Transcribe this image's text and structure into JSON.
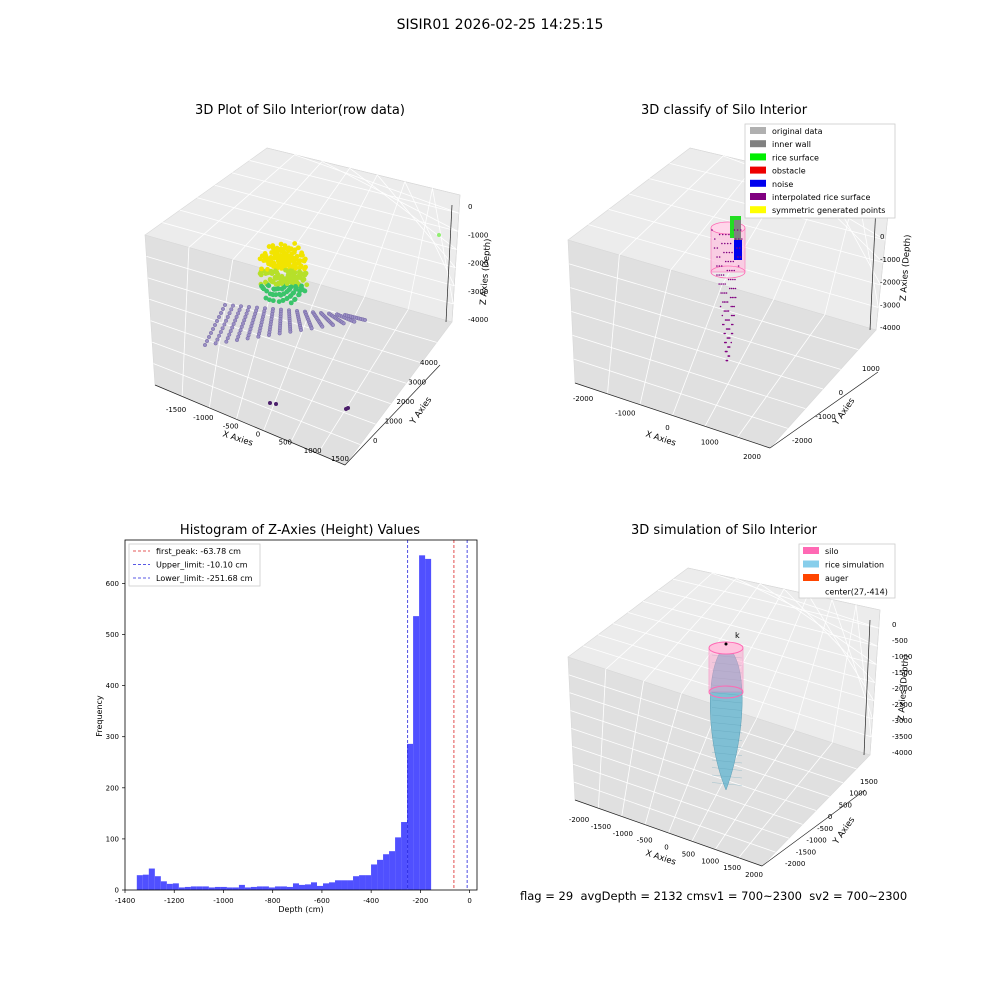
{
  "suptitle": "SISIR01 2026-02-25 14:25:15",
  "panels": {
    "raw": {
      "title": "3D Plot of Silo Interior(row data)",
      "xlabel": "X Axies",
      "ylabel": "Y Axies",
      "zlabel": "Z Axies (Depth)",
      "xticks": [
        "-1500",
        "-1000",
        "-500",
        "0",
        "500",
        "1000",
        "1500"
      ],
      "yticks": [
        "0",
        "1000",
        "2000",
        "3000",
        "4000"
      ],
      "zticks": [
        "0",
        "-1000",
        "-2000",
        "-3000",
        "-4000"
      ]
    },
    "classify": {
      "title": "3D classify of Silo Interior",
      "xlabel": "X Axies",
      "ylabel": "Y Axies",
      "zlabel": "Z Axies (Depth)",
      "xticks": [
        "-2000",
        "-1000",
        "0",
        "1000",
        "2000"
      ],
      "yticks": [
        "-2000",
        "-1000",
        "0",
        "1000"
      ],
      "zticks": [
        "0",
        "-1000",
        "-2000",
        "-3000",
        "-4000"
      ],
      "legend": [
        {
          "label": "original data",
          "color": "#b0b0b0"
        },
        {
          "label": "inner wall",
          "color": "#808080"
        },
        {
          "label": "rice surface",
          "color": "#00ee00"
        },
        {
          "label": "obstacle",
          "color": "#ee0000"
        },
        {
          "label": "noise",
          "color": "#0000ee"
        },
        {
          "label": "interpolated rice surface",
          "color": "#800080"
        },
        {
          "label": "symmetric generated points",
          "color": "#ffff00"
        }
      ]
    },
    "simulation": {
      "title": "3D simulation of Silo Interior",
      "xlabel": "X Axies",
      "ylabel": "Y Axies",
      "zlabel": "Z Axies (Depth)",
      "xticks": [
        "-2000",
        "-1500",
        "-1000",
        "-500",
        "0",
        "500",
        "1000",
        "1500",
        "2000"
      ],
      "yticks": [
        "-2000",
        "-1500",
        "-1000",
        "-500",
        "0",
        "500",
        "1000",
        "1500"
      ],
      "zticks": [
        "0",
        "-500",
        "-1000",
        "-1500",
        "-2000",
        "-2500",
        "-3000",
        "-3500",
        "-4000"
      ],
      "legend": [
        {
          "label": "silo",
          "color": "#ff69b4"
        },
        {
          "label": "rice simulation",
          "color": "#87ceeb"
        },
        {
          "label": "auger",
          "color": "#ff4500"
        },
        {
          "label": "center(27,-414)",
          "color": ""
        }
      ]
    }
  },
  "chart_data": [
    {
      "type": "bar",
      "title": "Histogram of Z-Axies (Height) Values",
      "xlabel": "Depth (cm)",
      "ylabel": "Frequency",
      "xlim": [
        -1400,
        30
      ],
      "ylim": [
        0,
        685
      ],
      "xticks": [
        -1400,
        -1200,
        -1000,
        -800,
        -600,
        -400,
        -200,
        0
      ],
      "yticks": [
        0,
        100,
        200,
        300,
        400,
        500,
        600
      ],
      "bin_width": 24.4,
      "bin_start": -1352,
      "values": [
        29,
        30,
        42,
        27,
        17,
        12,
        13,
        5,
        6,
        7,
        7,
        7,
        5,
        6,
        6,
        5,
        5,
        10,
        5,
        6,
        7,
        7,
        5,
        7,
        7,
        6,
        13,
        10,
        11,
        15,
        8,
        13,
        15,
        19,
        19,
        19,
        27,
        29,
        29,
        50,
        59,
        70,
        76,
        103,
        133,
        286,
        536,
        655,
        648
      ],
      "bar_color": "#5050ff",
      "vlines": [
        {
          "label": "first_peak: -63.78 cm",
          "x": -63.78,
          "color": "#dd2222"
        },
        {
          "label": "Upper_limit: -10.10 cm",
          "x": -10.1,
          "color": "#2222dd"
        },
        {
          "label": "Lower_limit: -251.68 cm",
          "x": -251.68,
          "color": "#2222dd"
        }
      ],
      "legend_position": "top-left"
    }
  ],
  "status": {
    "text": "flag = 29  avgDepth = 2132 cmsv1 = 700~2300  sv2 = 700~2300"
  }
}
